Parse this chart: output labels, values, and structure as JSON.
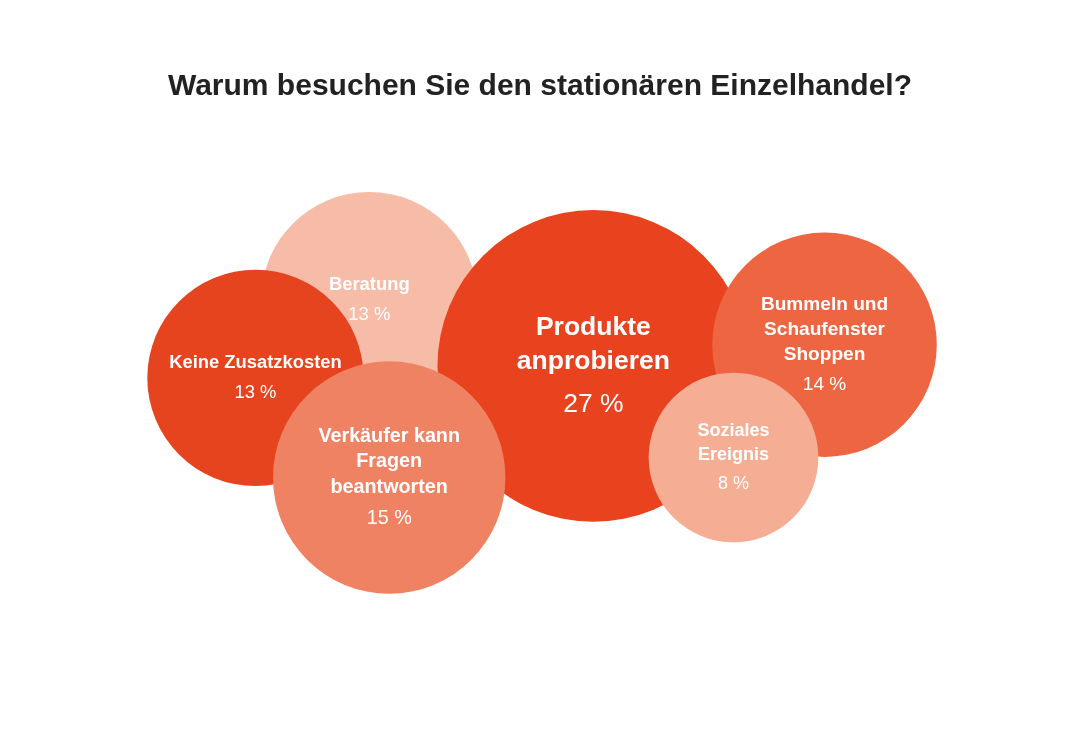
{
  "chart_data": {
    "type": "other",
    "title": "Warum besuchen Sie den stationären Einzelhandel?",
    "categories": [
      "Beratung",
      "Keine Zusatzkosten",
      "Produkte anprobieren",
      "Bummeln und Schaufenster Shoppen",
      "Verkäufer kann Fragen beantworten",
      "Soziales Ereignis"
    ],
    "values": [
      13,
      13,
      27,
      14,
      15,
      8
    ],
    "value_labels": [
      "13 %",
      "13 %",
      "27 %",
      "14 %",
      "15 %",
      "8 %"
    ],
    "colors": [
      "#f6bca8",
      "#e5441f",
      "#e8431e",
      "#ee6541",
      "#f08264",
      "#f5ad93"
    ]
  }
}
